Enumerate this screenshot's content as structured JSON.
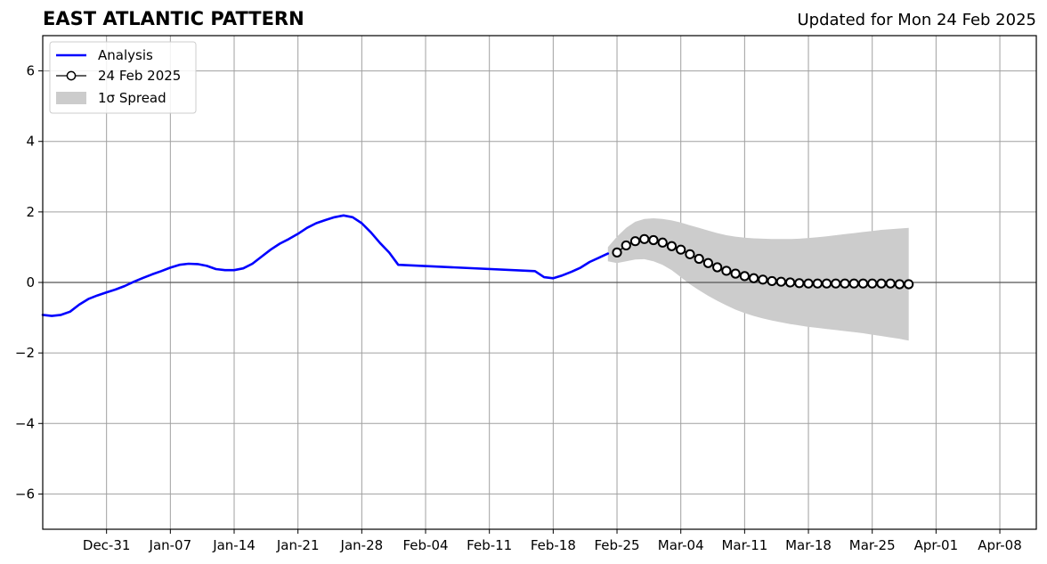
{
  "header": {
    "title": "EAST ATLANTIC PATTERN",
    "updated": "Updated for Mon 24 Feb 2025"
  },
  "chart_data": {
    "type": "line",
    "title": "EAST ATLANTIC PATTERN",
    "subtitle": "Updated for Mon 24 Feb 2025",
    "xlabel": "",
    "ylabel": "",
    "x_axis": {
      "type": "date",
      "range": [
        "2024-12-24",
        "2025-04-12"
      ],
      "tick_labels": [
        "Dec-31",
        "Jan-07",
        "Jan-14",
        "Jan-21",
        "Jan-28",
        "Feb-04",
        "Feb-11",
        "Feb-18",
        "Feb-25",
        "Mar-04",
        "Mar-11",
        "Mar-18",
        "Mar-25",
        "Apr-01",
        "Apr-08"
      ],
      "tick_dates": [
        "2024-12-31",
        "2025-01-07",
        "2025-01-14",
        "2025-01-21",
        "2025-01-28",
        "2025-02-04",
        "2025-02-11",
        "2025-02-18",
        "2025-02-25",
        "2025-03-04",
        "2025-03-11",
        "2025-03-18",
        "2025-03-25",
        "2025-04-01",
        "2025-04-08"
      ]
    },
    "y_axis": {
      "range": [
        -7,
        7
      ],
      "ticks": [
        -6,
        -4,
        -2,
        0,
        2,
        4,
        6
      ],
      "tick_labels": [
        "−6",
        "−4",
        "−2",
        "0",
        "2",
        "4",
        "6"
      ]
    },
    "grid": true,
    "zero_line": true,
    "legend": {
      "placement": "top-left",
      "entries": [
        "Analysis",
        "24 Feb 2025",
        "1σ Spread"
      ]
    },
    "colors": {
      "analysis": "#0000ff",
      "forecast_line": "#000000",
      "marker_face": "#ffffff",
      "spread": "#cccccc",
      "grid": "#a0a0a0",
      "zero_line": "#555555"
    },
    "series": [
      {
        "name": "Analysis",
        "points": [
          {
            "x": "2024-12-24",
            "y": -0.92
          },
          {
            "x": "2024-12-25",
            "y": -0.95
          },
          {
            "x": "2024-12-26",
            "y": -0.92
          },
          {
            "x": "2024-12-27",
            "y": -0.83
          },
          {
            "x": "2024-12-28",
            "y": -0.63
          },
          {
            "x": "2024-12-29",
            "y": -0.47
          },
          {
            "x": "2024-12-30",
            "y": -0.37
          },
          {
            "x": "2024-12-31",
            "y": -0.28
          },
          {
            "x": "2025-01-01",
            "y": -0.2
          },
          {
            "x": "2025-01-02",
            "y": -0.1
          },
          {
            "x": "2025-01-03",
            "y": 0.02
          },
          {
            "x": "2025-01-04",
            "y": 0.13
          },
          {
            "x": "2025-01-05",
            "y": 0.23
          },
          {
            "x": "2025-01-06",
            "y": 0.32
          },
          {
            "x": "2025-01-07",
            "y": 0.42
          },
          {
            "x": "2025-01-08",
            "y": 0.5
          },
          {
            "x": "2025-01-09",
            "y": 0.53
          },
          {
            "x": "2025-01-10",
            "y": 0.52
          },
          {
            "x": "2025-01-11",
            "y": 0.47
          },
          {
            "x": "2025-01-12",
            "y": 0.38
          },
          {
            "x": "2025-01-13",
            "y": 0.35
          },
          {
            "x": "2025-01-14",
            "y": 0.35
          },
          {
            "x": "2025-01-15",
            "y": 0.4
          },
          {
            "x": "2025-01-16",
            "y": 0.53
          },
          {
            "x": "2025-01-17",
            "y": 0.73
          },
          {
            "x": "2025-01-18",
            "y": 0.93
          },
          {
            "x": "2025-01-19",
            "y": 1.1
          },
          {
            "x": "2025-01-20",
            "y": 1.23
          },
          {
            "x": "2025-01-21",
            "y": 1.38
          },
          {
            "x": "2025-01-22",
            "y": 1.55
          },
          {
            "x": "2025-01-23",
            "y": 1.68
          },
          {
            "x": "2025-01-24",
            "y": 1.77
          },
          {
            "x": "2025-01-25",
            "y": 1.85
          },
          {
            "x": "2025-01-26",
            "y": 1.9
          },
          {
            "x": "2025-01-27",
            "y": 1.85
          },
          {
            "x": "2025-01-28",
            "y": 1.68
          },
          {
            "x": "2025-01-29",
            "y": 1.42
          },
          {
            "x": "2025-01-30",
            "y": 1.12
          },
          {
            "x": "2025-01-31",
            "y": 0.85
          },
          {
            "x": "2025-02-01",
            "y": 0.5
          },
          {
            "x": "2025-02-16",
            "y": 0.32
          },
          {
            "x": "2025-02-17",
            "y": 0.15
          },
          {
            "x": "2025-02-18",
            "y": 0.12
          },
          {
            "x": "2025-02-19",
            "y": 0.2
          },
          {
            "x": "2025-02-20",
            "y": 0.3
          },
          {
            "x": "2025-02-21",
            "y": 0.42
          },
          {
            "x": "2025-02-22",
            "y": 0.58
          },
          {
            "x": "2025-02-23",
            "y": 0.7
          },
          {
            "x": "2025-02-24",
            "y": 0.82
          }
        ]
      },
      {
        "name": "24 Feb 2025",
        "points": [
          {
            "x": "2025-02-25",
            "y": 0.85
          },
          {
            "x": "2025-02-26",
            "y": 1.05
          },
          {
            "x": "2025-02-27",
            "y": 1.17
          },
          {
            "x": "2025-02-28",
            "y": 1.23
          },
          {
            "x": "2025-03-01",
            "y": 1.2
          },
          {
            "x": "2025-03-02",
            "y": 1.13
          },
          {
            "x": "2025-03-03",
            "y": 1.03
          },
          {
            "x": "2025-03-04",
            "y": 0.93
          },
          {
            "x": "2025-03-05",
            "y": 0.8
          },
          {
            "x": "2025-03-06",
            "y": 0.67
          },
          {
            "x": "2025-03-07",
            "y": 0.55
          },
          {
            "x": "2025-03-08",
            "y": 0.43
          },
          {
            "x": "2025-03-09",
            "y": 0.33
          },
          {
            "x": "2025-03-10",
            "y": 0.25
          },
          {
            "x": "2025-03-11",
            "y": 0.18
          },
          {
            "x": "2025-03-12",
            "y": 0.12
          },
          {
            "x": "2025-03-13",
            "y": 0.08
          },
          {
            "x": "2025-03-14",
            "y": 0.04
          },
          {
            "x": "2025-03-15",
            "y": 0.02
          },
          {
            "x": "2025-03-16",
            "y": 0.0
          },
          {
            "x": "2025-03-17",
            "y": -0.02
          },
          {
            "x": "2025-03-18",
            "y": -0.03
          },
          {
            "x": "2025-03-19",
            "y": -0.03
          },
          {
            "x": "2025-03-20",
            "y": -0.03
          },
          {
            "x": "2025-03-21",
            "y": -0.03
          },
          {
            "x": "2025-03-22",
            "y": -0.03
          },
          {
            "x": "2025-03-23",
            "y": -0.03
          },
          {
            "x": "2025-03-24",
            "y": -0.03
          },
          {
            "x": "2025-03-25",
            "y": -0.03
          },
          {
            "x": "2025-03-26",
            "y": -0.03
          },
          {
            "x": "2025-03-27",
            "y": -0.03
          },
          {
            "x": "2025-03-28",
            "y": -0.05
          },
          {
            "x": "2025-03-29",
            "y": -0.05
          }
        ]
      },
      {
        "name": "1σ Spread",
        "type": "area",
        "band": [
          {
            "x": "2025-02-24",
            "upper": 1.0,
            "lower": 0.6
          },
          {
            "x": "2025-02-25",
            "upper": 1.3,
            "lower": 0.55
          },
          {
            "x": "2025-02-26",
            "upper": 1.55,
            "lower": 0.6
          },
          {
            "x": "2025-02-27",
            "upper": 1.72,
            "lower": 0.65
          },
          {
            "x": "2025-02-28",
            "upper": 1.8,
            "lower": 0.66
          },
          {
            "x": "2025-03-01",
            "upper": 1.82,
            "lower": 0.6
          },
          {
            "x": "2025-03-02",
            "upper": 1.8,
            "lower": 0.5
          },
          {
            "x": "2025-03-03",
            "upper": 1.76,
            "lower": 0.35
          },
          {
            "x": "2025-03-04",
            "upper": 1.7,
            "lower": 0.15
          },
          {
            "x": "2025-03-05",
            "upper": 1.62,
            "lower": -0.05
          },
          {
            "x": "2025-03-06",
            "upper": 1.55,
            "lower": -0.22
          },
          {
            "x": "2025-03-07",
            "upper": 1.47,
            "lower": -0.38
          },
          {
            "x": "2025-03-08",
            "upper": 1.4,
            "lower": -0.52
          },
          {
            "x": "2025-03-09",
            "upper": 1.34,
            "lower": -0.65
          },
          {
            "x": "2025-03-10",
            "upper": 1.3,
            "lower": -0.77
          },
          {
            "x": "2025-03-11",
            "upper": 1.27,
            "lower": -0.87
          },
          {
            "x": "2025-03-12",
            "upper": 1.25,
            "lower": -0.95
          },
          {
            "x": "2025-03-13",
            "upper": 1.24,
            "lower": -1.02
          },
          {
            "x": "2025-03-14",
            "upper": 1.23,
            "lower": -1.08
          },
          {
            "x": "2025-03-15",
            "upper": 1.23,
            "lower": -1.13
          },
          {
            "x": "2025-03-16",
            "upper": 1.23,
            "lower": -1.18
          },
          {
            "x": "2025-03-17",
            "upper": 1.24,
            "lower": -1.22
          },
          {
            "x": "2025-03-18",
            "upper": 1.26,
            "lower": -1.26
          },
          {
            "x": "2025-03-19",
            "upper": 1.28,
            "lower": -1.29
          },
          {
            "x": "2025-03-20",
            "upper": 1.31,
            "lower": -1.32
          },
          {
            "x": "2025-03-21",
            "upper": 1.34,
            "lower": -1.35
          },
          {
            "x": "2025-03-22",
            "upper": 1.37,
            "lower": -1.38
          },
          {
            "x": "2025-03-23",
            "upper": 1.4,
            "lower": -1.41
          },
          {
            "x": "2025-03-24",
            "upper": 1.43,
            "lower": -1.44
          },
          {
            "x": "2025-03-25",
            "upper": 1.46,
            "lower": -1.48
          },
          {
            "x": "2025-03-26",
            "upper": 1.49,
            "lower": -1.52
          },
          {
            "x": "2025-03-27",
            "upper": 1.51,
            "lower": -1.56
          },
          {
            "x": "2025-03-28",
            "upper": 1.53,
            "lower": -1.6
          },
          {
            "x": "2025-03-29",
            "upper": 1.55,
            "lower": -1.65
          }
        ]
      }
    ]
  }
}
